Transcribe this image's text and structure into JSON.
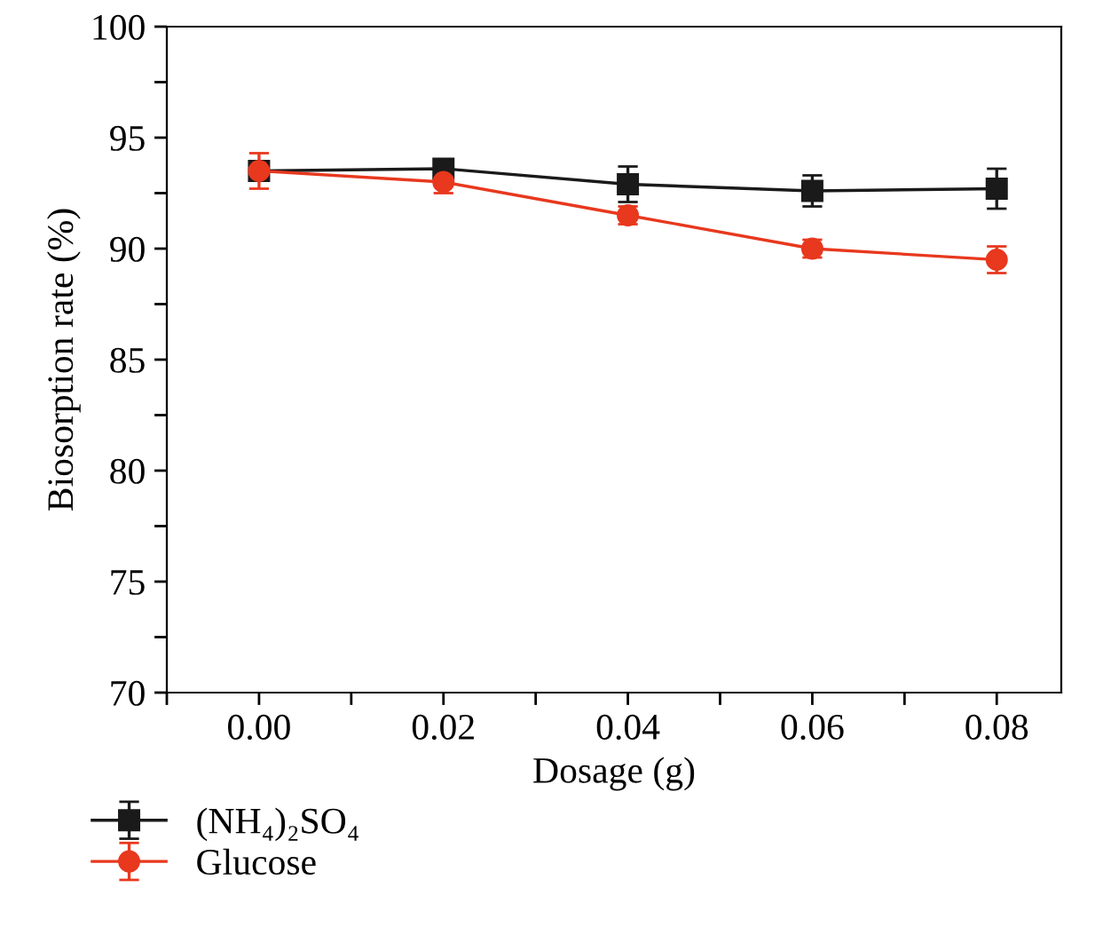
{
  "chart_data": {
    "type": "line",
    "xlabel": "Dosage (g)",
    "ylabel": "Biosorption rate (%)",
    "x": [
      0.0,
      0.02,
      0.04,
      0.06,
      0.08
    ],
    "series": [
      {
        "name": "(NH₄)₂SO₄",
        "color": "#1a1a1a",
        "marker": "square",
        "values": [
          93.5,
          93.6,
          92.9,
          92.6,
          92.7
        ],
        "errors": [
          0.4,
          0.4,
          0.8,
          0.7,
          0.9
        ]
      },
      {
        "name": "Glucose",
        "color": "#e8381e",
        "marker": "circle",
        "values": [
          93.5,
          93.0,
          91.5,
          90.0,
          89.5
        ],
        "errors": [
          0.8,
          0.5,
          0.4,
          0.4,
          0.6
        ]
      }
    ],
    "xlim": [
      -0.01,
      0.087
    ],
    "xticks": [
      {
        "value": -0.01,
        "label": null
      },
      {
        "value": 0.0,
        "label": "0.00"
      },
      {
        "value": 0.01,
        "label": null
      },
      {
        "value": 0.02,
        "label": "0.02"
      },
      {
        "value": 0.03,
        "label": null
      },
      {
        "value": 0.04,
        "label": "0.04"
      },
      {
        "value": 0.05,
        "label": null
      },
      {
        "value": 0.06,
        "label": "0.06"
      },
      {
        "value": 0.07,
        "label": null
      },
      {
        "value": 0.08,
        "label": "0.08"
      }
    ],
    "ylim": [
      70,
      100
    ],
    "yticks": [
      70,
      {
        "value": 72.5,
        "label": null
      },
      75,
      {
        "value": 77.5,
        "label": null
      },
      80,
      {
        "value": 82.5,
        "label": null
      },
      85,
      {
        "value": 87.5,
        "label": null
      },
      90,
      {
        "value": 92.5,
        "label": null
      },
      95,
      {
        "value": 97.5,
        "label": null
      },
      100
    ],
    "grid": false,
    "legend": "bottom left",
    "line_style": "solid"
  }
}
